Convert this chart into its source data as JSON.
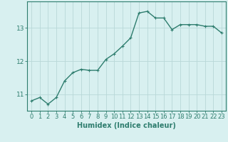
{
  "xlabel": "Humidex (Indice chaleur)",
  "x": [
    0,
    1,
    2,
    3,
    4,
    5,
    6,
    7,
    8,
    9,
    10,
    11,
    12,
    13,
    14,
    15,
    16,
    17,
    18,
    19,
    20,
    21,
    22,
    23
  ],
  "y": [
    10.8,
    10.9,
    10.7,
    10.9,
    11.4,
    11.65,
    11.75,
    11.72,
    11.72,
    12.05,
    12.22,
    12.45,
    12.7,
    13.45,
    13.5,
    13.3,
    13.3,
    12.95,
    13.1,
    13.1,
    13.1,
    13.05,
    13.05,
    12.85
  ],
  "line_color": "#2e7d6e",
  "marker": "+",
  "bg_color": "#d8f0f0",
  "grid_color": "#b8d8d8",
  "axis_color": "#2e7d6e",
  "tick_label_color": "#2e7d6e",
  "xlabel_color": "#2e7d6e",
  "ylim": [
    10.5,
    13.8
  ],
  "yticks": [
    11,
    12,
    13
  ],
  "xlim": [
    -0.5,
    23.5
  ],
  "linewidth": 1.0,
  "markersize": 3.5,
  "tick_fontsize": 6.0,
  "xlabel_fontsize": 7.0
}
